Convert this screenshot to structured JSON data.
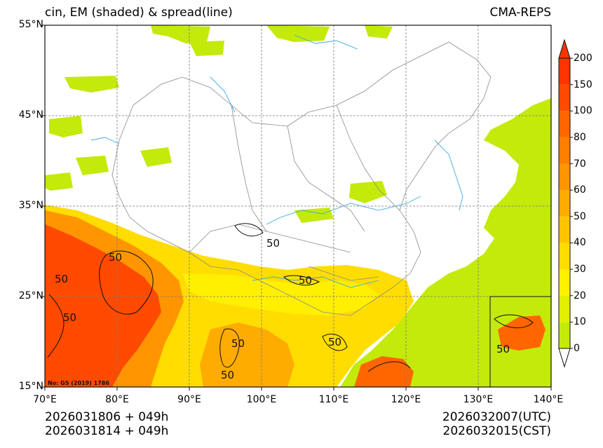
{
  "header": {
    "title": "cin, EM (shaded) & spread(line)",
    "model": "CMA-REPS"
  },
  "axes": {
    "lat_labels": [
      "55°N",
      "45°N",
      "35°N",
      "25°N",
      "15°N"
    ],
    "lon_labels": [
      "70°E",
      "80°E",
      "90°E",
      "100°E",
      "110°E",
      "120°E",
      "130°E",
      "140°E"
    ]
  },
  "colorbar": {
    "levels": [
      "0",
      "10",
      "20",
      "30",
      "40",
      "50",
      "60",
      "70",
      "80",
      "100",
      "150",
      "200"
    ],
    "colors": [
      "#c3ea0a",
      "#e0f000",
      "#fff000",
      "#ffdd00",
      "#ffc400",
      "#ffab00",
      "#ff9500",
      "#ff7e00",
      "#ff6600",
      "#ff4a00",
      "#ff3300"
    ],
    "extend_over_color": "#ff3300"
  },
  "map_overlay": {
    "contour_label": "50",
    "watermark": "No: GS (2019) 1786"
  },
  "footer": {
    "init_utc": "2026031806  +  049h",
    "init_cst": "2026031814  +  049h",
    "valid_utc": "2026032007(UTC)",
    "valid_cst": "2026032015(CST)"
  }
}
